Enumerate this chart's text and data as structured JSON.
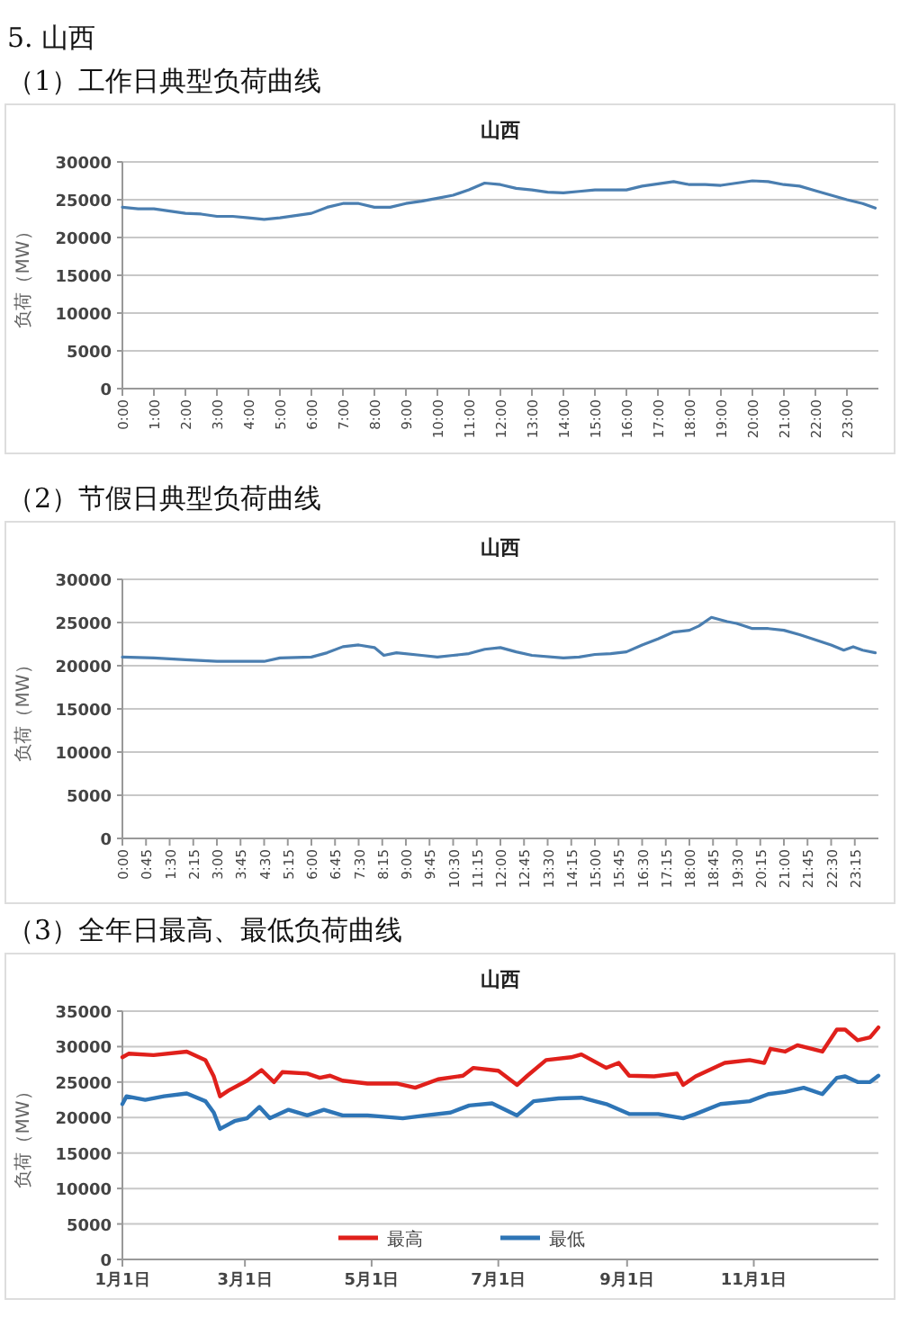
{
  "chart_data": [
    {
      "type": "line",
      "title": "山西",
      "annotations": [
        "5. 山西",
        "（1）工作日典型负荷曲线"
      ],
      "ylabel": "负荷（MW）",
      "ylim": [
        0,
        30000
      ],
      "yticks": [
        0,
        5000,
        10000,
        15000,
        20000,
        25000,
        30000
      ],
      "xlim": [
        0,
        24
      ],
      "xticks": [
        {
          "value": 0,
          "label": "0:00"
        },
        {
          "value": 1,
          "label": "1:00"
        },
        {
          "value": 2,
          "label": "2:00"
        },
        {
          "value": 3,
          "label": "3:00"
        },
        {
          "value": 4,
          "label": "4:00"
        },
        {
          "value": 5,
          "label": "5:00"
        },
        {
          "value": 6,
          "label": "6:00"
        },
        {
          "value": 7,
          "label": "7:00"
        },
        {
          "value": 8,
          "label": "8:00"
        },
        {
          "value": 9,
          "label": "9:00"
        },
        {
          "value": 10,
          "label": "10:00"
        },
        {
          "value": 11,
          "label": "11:00"
        },
        {
          "value": 12,
          "label": "12:00"
        },
        {
          "value": 13,
          "label": "13:00"
        },
        {
          "value": 14,
          "label": "14:00"
        },
        {
          "value": 15,
          "label": "15:00"
        },
        {
          "value": 16,
          "label": "16:00"
        },
        {
          "value": 17,
          "label": "17:00"
        },
        {
          "value": 18,
          "label": "18:00"
        },
        {
          "value": 19,
          "label": "19:00"
        },
        {
          "value": 20,
          "label": "20:00"
        },
        {
          "value": 21,
          "label": "21:00"
        },
        {
          "value": 22,
          "label": "22:00"
        },
        {
          "value": 23,
          "label": "23:00"
        }
      ],
      "grid": "y",
      "x": [
        0,
        0.5,
        1,
        1.5,
        2,
        2.5,
        3,
        3.5,
        4,
        4.5,
        5,
        5.5,
        6,
        6.5,
        7,
        7.5,
        8,
        8.5,
        9,
        9.5,
        10,
        10.5,
        11,
        11.5,
        12,
        12.5,
        13,
        13.5,
        14,
        14.5,
        15,
        15.5,
        16,
        16.5,
        17,
        17.5,
        18,
        18.5,
        19,
        19.5,
        20,
        20.5,
        21,
        21.5,
        22,
        22.5,
        23,
        23.5,
        23.9
      ],
      "series": [
        {
          "color": "#4a7eb0",
          "values": [
            24000,
            23800,
            23800,
            23500,
            23200,
            23100,
            22800,
            22800,
            22600,
            22400,
            22600,
            22900,
            23200,
            24000,
            24500,
            24500,
            24000,
            24000,
            24500,
            24800,
            25200,
            25600,
            26300,
            27200,
            27000,
            26500,
            26300,
            26000,
            25900,
            26100,
            26300,
            26300,
            26300,
            26800,
            27100,
            27400,
            27000,
            27000,
            26900,
            27200,
            27500,
            27400,
            27000,
            26800,
            26200,
            25600,
            25000,
            24500,
            23900
          ]
        }
      ]
    },
    {
      "type": "line",
      "title": "山西",
      "annotations": [
        "（2）节假日典型负荷曲线"
      ],
      "ylabel": "负荷（MW）",
      "ylim": [
        0,
        30000
      ],
      "yticks": [
        0,
        5000,
        10000,
        15000,
        20000,
        25000,
        30000
      ],
      "xlim": [
        0,
        24
      ],
      "xticks": [
        {
          "value": 0,
          "label": "0:00"
        },
        {
          "value": 0.75,
          "label": "0:45"
        },
        {
          "value": 1.5,
          "label": "1:30"
        },
        {
          "value": 2.25,
          "label": "2:15"
        },
        {
          "value": 3,
          "label": "3:00"
        },
        {
          "value": 3.75,
          "label": "3:45"
        },
        {
          "value": 4.5,
          "label": "4:30"
        },
        {
          "value": 5.25,
          "label": "5:15"
        },
        {
          "value": 6,
          "label": "6:00"
        },
        {
          "value": 6.75,
          "label": "6:45"
        },
        {
          "value": 7.5,
          "label": "7:30"
        },
        {
          "value": 8.25,
          "label": "8:15"
        },
        {
          "value": 9,
          "label": "9:00"
        },
        {
          "value": 9.75,
          "label": "9:45"
        },
        {
          "value": 10.5,
          "label": "10:30"
        },
        {
          "value": 11.25,
          "label": "11:15"
        },
        {
          "value": 12,
          "label": "12:00"
        },
        {
          "value": 12.75,
          "label": "12:45"
        },
        {
          "value": 13.5,
          "label": "13:30"
        },
        {
          "value": 14.25,
          "label": "14:15"
        },
        {
          "value": 15,
          "label": "15:00"
        },
        {
          "value": 15.75,
          "label": "15:45"
        },
        {
          "value": 16.5,
          "label": "16:30"
        },
        {
          "value": 17.25,
          "label": "17:15"
        },
        {
          "value": 18,
          "label": "18:00"
        },
        {
          "value": 18.75,
          "label": "18:45"
        },
        {
          "value": 19.5,
          "label": "19:30"
        },
        {
          "value": 20.25,
          "label": "20:15"
        },
        {
          "value": 21,
          "label": "21:00"
        },
        {
          "value": 21.75,
          "label": "21:45"
        },
        {
          "value": 22.5,
          "label": "22:30"
        },
        {
          "value": 23.25,
          "label": "23:15"
        }
      ],
      "grid": "y",
      "x": [
        0,
        1,
        2,
        3,
        4,
        4.5,
        5,
        6,
        6.5,
        7,
        7.5,
        8,
        8.3,
        8.7,
        9.5,
        10,
        10.5,
        11,
        11.5,
        12,
        12.5,
        13,
        14,
        14.5,
        15,
        15.5,
        16,
        16.5,
        17,
        17.5,
        18,
        18.3,
        18.7,
        19.2,
        19.5,
        20,
        20.5,
        21,
        21.5,
        22,
        22.5,
        22.9,
        23.2,
        23.5,
        23.9
      ],
      "series": [
        {
          "color": "#4a7eb0",
          "values": [
            21000,
            20900,
            20700,
            20500,
            20500,
            20500,
            20900,
            21000,
            21500,
            22200,
            22400,
            22100,
            21200,
            21500,
            21200,
            21000,
            21200,
            21400,
            21900,
            22100,
            21600,
            21200,
            20900,
            21000,
            21300,
            21400,
            21600,
            22400,
            23100,
            23900,
            24100,
            24600,
            25600,
            25100,
            24900,
            24300,
            24300,
            24100,
            23600,
            23000,
            22400,
            21800,
            22200,
            21800,
            21500
          ]
        }
      ]
    },
    {
      "type": "line",
      "title": "山西",
      "annotations": [
        "（3）全年日最高、最低负荷曲线"
      ],
      "ylabel": "负荷（MW）",
      "ylim": [
        0,
        35000
      ],
      "yticks": [
        0,
        5000,
        10000,
        15000,
        20000,
        25000,
        30000,
        35000
      ],
      "xlim": [
        "--01-01",
        "--12-31"
      ],
      "xticks": [
        {
          "value": "--01-01",
          "label": "1月1日"
        },
        {
          "value": "--03-01",
          "label": "3月1日"
        },
        {
          "value": "--05-01",
          "label": "5月1日"
        },
        {
          "value": "--07-01",
          "label": "7月1日"
        },
        {
          "value": "--09-01",
          "label": "9月1日"
        },
        {
          "value": "--11-01",
          "label": "11月1日"
        }
      ],
      "grid": "y",
      "legend": "bottom",
      "series": [
        {
          "name": "最高",
          "color": "#e0201b",
          "x": [
            "--01-01",
            "--01-04",
            "--01-16",
            "--02-01",
            "--02-10",
            "--02-14",
            "--02-17",
            "--02-21",
            "--03-02",
            "--03-09",
            "--03-15",
            "--03-19",
            "--03-31",
            "--04-06",
            "--04-11",
            "--04-17",
            "--04-29",
            "--05-13",
            "--05-22",
            "--06-02",
            "--06-14",
            "--06-19",
            "--07-01",
            "--07-10",
            "--07-15",
            "--07-24",
            "--08-05",
            "--08-10",
            "--08-22",
            "--08-28",
            "--09-02",
            "--09-14",
            "--09-25",
            "--09-28",
            "--10-04",
            "--10-18",
            "--10-30",
            "--11-06",
            "--11-09",
            "--11-16",
            "--11-22",
            "--12-04",
            "--12-11",
            "--12-15",
            "--12-21",
            "--12-27",
            "--12-31"
          ],
          "values": [
            28500,
            29000,
            28800,
            29300,
            28100,
            25800,
            23000,
            23800,
            25200,
            26700,
            25000,
            26400,
            26200,
            25600,
            25900,
            25200,
            24800,
            24800,
            24200,
            25400,
            25900,
            27000,
            26600,
            24600,
            25900,
            28100,
            28500,
            28900,
            27000,
            27700,
            25900,
            25800,
            26200,
            24600,
            25800,
            27700,
            28100,
            27700,
            29700,
            29300,
            30200,
            29300,
            32400,
            32400,
            30900,
            31300,
            32700
          ]
        },
        {
          "name": "最低",
          "color": "#2e75b6",
          "x": [
            "--01-01",
            "--01-03",
            "--01-12",
            "--01-21",
            "--02-01",
            "--02-10",
            "--02-14",
            "--02-17",
            "--02-24",
            "--03-02",
            "--03-08",
            "--03-13",
            "--03-22",
            "--03-31",
            "--04-08",
            "--04-17",
            "--04-29",
            "--05-16",
            "--05-27",
            "--06-08",
            "--06-17",
            "--06-28",
            "--07-10",
            "--07-18",
            "--07-30",
            "--08-10",
            "--08-22",
            "--09-02",
            "--09-16",
            "--09-28",
            "--10-04",
            "--10-16",
            "--10-30",
            "--11-08",
            "--11-16",
            "--11-25",
            "--12-04",
            "--12-11",
            "--12-15",
            "--12-21",
            "--12-27",
            "--12-31"
          ],
          "values": [
            21900,
            23000,
            22500,
            23000,
            23400,
            22300,
            20700,
            18400,
            19500,
            19900,
            21500,
            19900,
            21100,
            20300,
            21100,
            20300,
            20300,
            19900,
            20300,
            20700,
            21700,
            22000,
            20300,
            22300,
            22700,
            22800,
            21900,
            20500,
            20500,
            19900,
            20500,
            21900,
            22300,
            23300,
            23600,
            24200,
            23300,
            25600,
            25800,
            25000,
            25000,
            25900
          ]
        }
      ]
    }
  ]
}
